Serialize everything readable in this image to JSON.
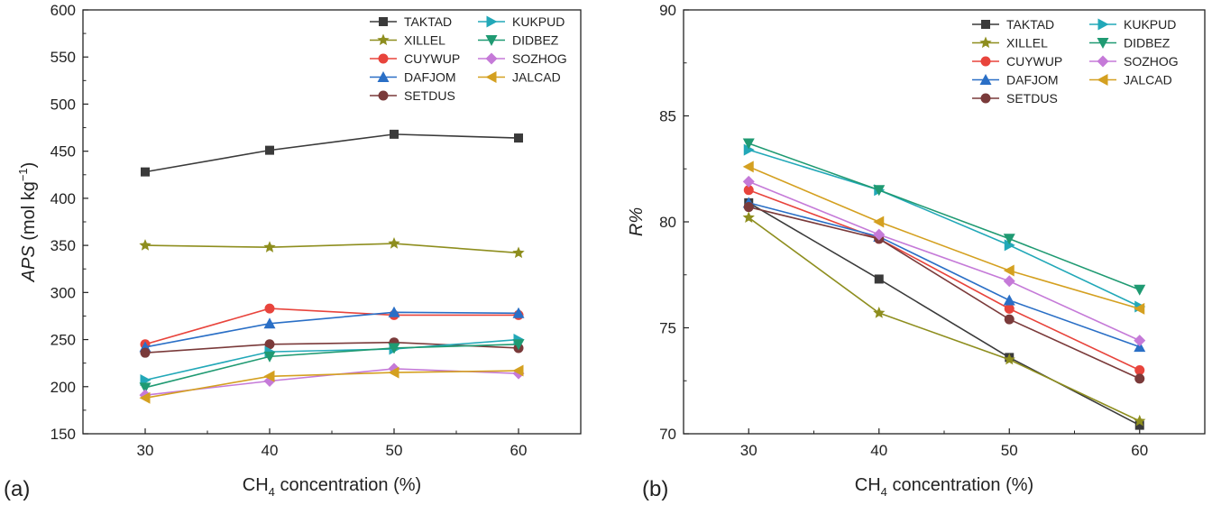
{
  "chart_data": [
    {
      "id": "a",
      "type": "line",
      "panel_label": "(a)",
      "title": "",
      "xlabel_main": "CH",
      "xlabel_sub": "4",
      "xlabel_rest": " concentration (%)",
      "ylabel_main": "APS",
      "ylabel_rest": " (mol kg",
      "ylabel_sup": "−1",
      "ylabel_end": ")",
      "x": [
        30,
        40,
        50,
        60
      ],
      "xlim": [
        25,
        65
      ],
      "ylim": [
        150,
        600
      ],
      "yticks": [
        150,
        200,
        250,
        300,
        350,
        400,
        450,
        500,
        550,
        600
      ],
      "legend_position": "top-right",
      "series": [
        {
          "name": "TAKTAD",
          "color": "#3a3a3a",
          "marker": "square",
          "values": [
            428,
            451,
            468,
            464
          ]
        },
        {
          "name": "XILLEL",
          "color": "#8e8e1e",
          "marker": "star",
          "values": [
            350,
            348,
            352,
            342
          ]
        },
        {
          "name": "CUYWUP",
          "color": "#e8443c",
          "marker": "circle",
          "values": [
            245,
            283,
            276,
            276
          ]
        },
        {
          "name": "DAFJOM",
          "color": "#2a6fc6",
          "marker": "triangle-up",
          "values": [
            242,
            267,
            279,
            278
          ]
        },
        {
          "name": "SETDUS",
          "color": "#7a3a3a",
          "marker": "circle",
          "values": [
            236,
            245,
            247,
            241
          ]
        },
        {
          "name": "KUKPUD",
          "color": "#22a8b8",
          "marker": "triangle-right",
          "values": [
            207,
            237,
            240,
            250
          ]
        },
        {
          "name": "DIDBEZ",
          "color": "#1f9a72",
          "marker": "triangle-down",
          "values": [
            199,
            232,
            241,
            245
          ]
        },
        {
          "name": "SOZHOG",
          "color": "#c57ad8",
          "marker": "diamond",
          "values": [
            191,
            206,
            219,
            214
          ]
        },
        {
          "name": "JALCAD",
          "color": "#d4a020",
          "marker": "triangle-left",
          "values": [
            188,
            211,
            215,
            217
          ]
        }
      ]
    },
    {
      "id": "b",
      "type": "line",
      "panel_label": "(b)",
      "title": "",
      "xlabel_main": "CH",
      "xlabel_sub": "4",
      "xlabel_rest": " concentration (%)",
      "ylabel_main": "R%",
      "ylabel_rest": "",
      "ylabel_sup": "",
      "ylabel_end": "",
      "x": [
        30,
        40,
        50,
        60
      ],
      "xlim": [
        25,
        65
      ],
      "ylim": [
        70,
        90
      ],
      "yticks": [
        70,
        75,
        80,
        85,
        90
      ],
      "legend_position": "top-right",
      "series": [
        {
          "name": "TAKTAD",
          "color": "#3a3a3a",
          "marker": "square",
          "values": [
            80.9,
            77.3,
            73.6,
            70.4
          ]
        },
        {
          "name": "XILLEL",
          "color": "#8e8e1e",
          "marker": "star",
          "values": [
            80.2,
            75.7,
            73.5,
            70.6
          ]
        },
        {
          "name": "CUYWUP",
          "color": "#e8443c",
          "marker": "circle",
          "values": [
            81.5,
            79.2,
            75.9,
            73.0
          ]
        },
        {
          "name": "DAFJOM",
          "color": "#2a6fc6",
          "marker": "triangle-up",
          "values": [
            80.9,
            79.3,
            76.3,
            74.1
          ]
        },
        {
          "name": "SETDUS",
          "color": "#7a3a3a",
          "marker": "circle",
          "values": [
            80.7,
            79.2,
            75.4,
            72.6
          ]
        },
        {
          "name": "KUKPUD",
          "color": "#22a8b8",
          "marker": "triangle-right",
          "values": [
            83.4,
            81.5,
            78.9,
            76.0
          ]
        },
        {
          "name": "DIDBEZ",
          "color": "#1f9a72",
          "marker": "triangle-down",
          "values": [
            83.7,
            81.5,
            79.2,
            76.8
          ]
        },
        {
          "name": "SOZHOG",
          "color": "#c57ad8",
          "marker": "diamond",
          "values": [
            81.9,
            79.4,
            77.2,
            74.4
          ]
        },
        {
          "name": "JALCAD",
          "color": "#d4a020",
          "marker": "triangle-left",
          "values": [
            82.6,
            80.0,
            77.7,
            75.9
          ]
        }
      ]
    }
  ]
}
